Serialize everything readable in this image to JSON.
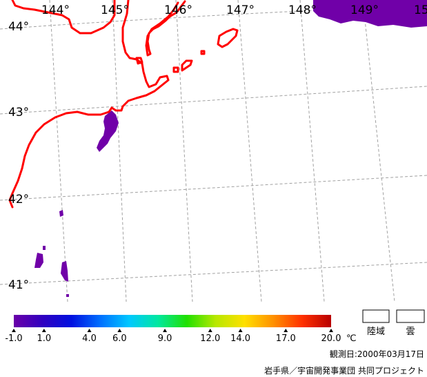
{
  "map": {
    "longitudes": [
      "144°",
      "145°",
      "146°",
      "147°",
      "148°",
      "149°",
      "15"
    ],
    "latitudes": [
      "44°",
      "43°",
      "42°",
      "41°"
    ],
    "coastline_color": "#ff0000",
    "cold_water_color": "#7000a8",
    "grid_color": "#a0a0a0"
  },
  "colorbar": {
    "ticks": [
      "-1.0",
      "1.0",
      "4.0",
      "6.0",
      "9.0",
      "12.0",
      "14.0",
      "17.0",
      "20.0"
    ],
    "unit": "℃",
    "gradient_stops": [
      "#6a00a8",
      "#3000c0",
      "#0010e0",
      "#0070ff",
      "#00c8ff",
      "#00e8a0",
      "#20e000",
      "#b8e800",
      "#ffe000",
      "#ff9000",
      "#ff3000",
      "#b80000"
    ]
  },
  "legend": {
    "land_label": "陸域",
    "cloud_label": "雲"
  },
  "footer": {
    "observation_date": "観測日:2000年03月17日",
    "credit": "岩手県／宇宙開発事業団 共同プロジェクト"
  }
}
